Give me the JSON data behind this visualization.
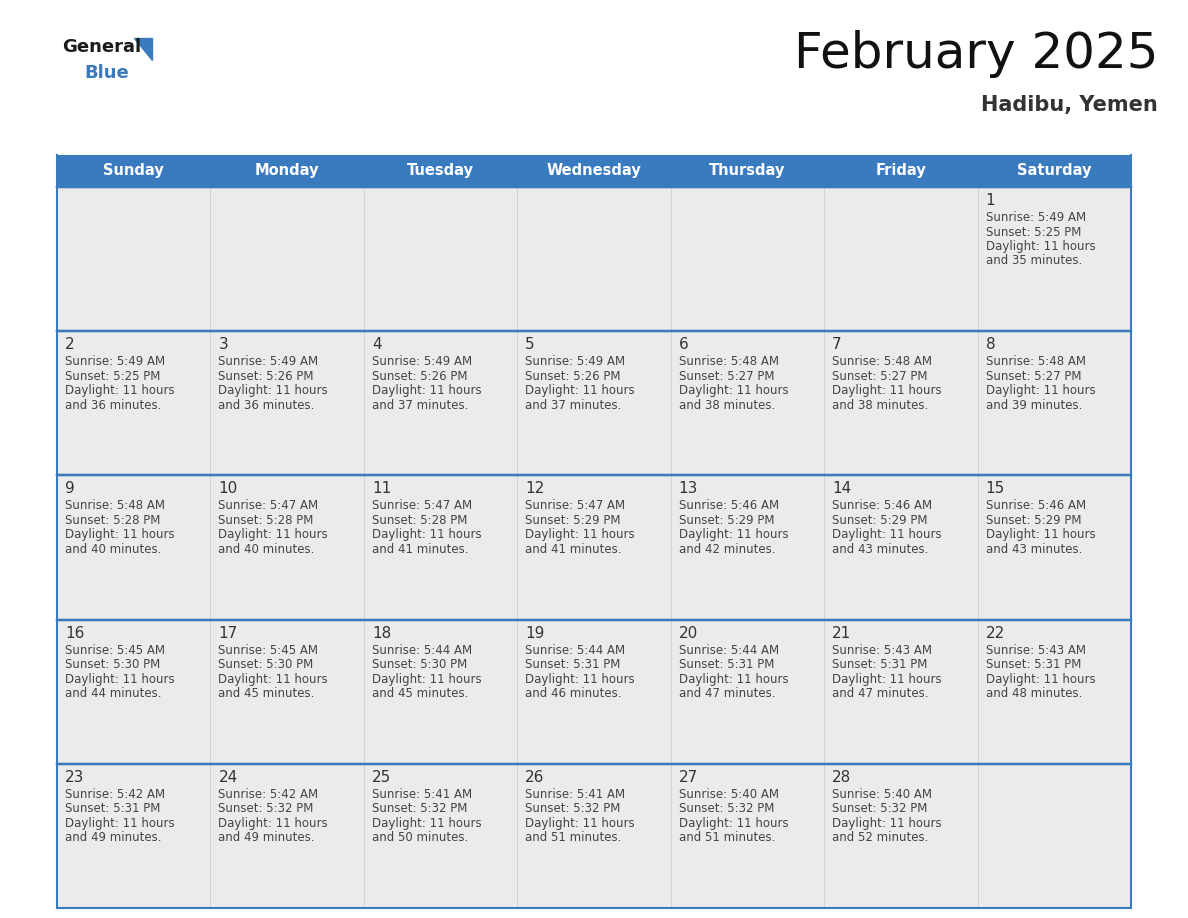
{
  "title": "February 2025",
  "subtitle": "Hadibu, Yemen",
  "header_color": "#3a7abf",
  "header_text_color": "#ffffff",
  "day_names": [
    "Sunday",
    "Monday",
    "Tuesday",
    "Wednesday",
    "Thursday",
    "Friday",
    "Saturday"
  ],
  "bg_color": "#ffffff",
  "cell_bg": "#ebebeb",
  "border_color": "#3a7abf",
  "day_num_color": "#333333",
  "text_color": "#444444",
  "calendar": [
    [
      null,
      null,
      null,
      null,
      null,
      null,
      1
    ],
    [
      2,
      3,
      4,
      5,
      6,
      7,
      8
    ],
    [
      9,
      10,
      11,
      12,
      13,
      14,
      15
    ],
    [
      16,
      17,
      18,
      19,
      20,
      21,
      22
    ],
    [
      23,
      24,
      25,
      26,
      27,
      28,
      null
    ]
  ],
  "sunrise": {
    "1": "5:49 AM",
    "2": "5:49 AM",
    "3": "5:49 AM",
    "4": "5:49 AM",
    "5": "5:49 AM",
    "6": "5:48 AM",
    "7": "5:48 AM",
    "8": "5:48 AM",
    "9": "5:48 AM",
    "10": "5:47 AM",
    "11": "5:47 AM",
    "12": "5:47 AM",
    "13": "5:46 AM",
    "14": "5:46 AM",
    "15": "5:46 AM",
    "16": "5:45 AM",
    "17": "5:45 AM",
    "18": "5:44 AM",
    "19": "5:44 AM",
    "20": "5:44 AM",
    "21": "5:43 AM",
    "22": "5:43 AM",
    "23": "5:42 AM",
    "24": "5:42 AM",
    "25": "5:41 AM",
    "26": "5:41 AM",
    "27": "5:40 AM",
    "28": "5:40 AM"
  },
  "sunset": {
    "1": "5:25 PM",
    "2": "5:25 PM",
    "3": "5:26 PM",
    "4": "5:26 PM",
    "5": "5:26 PM",
    "6": "5:27 PM",
    "7": "5:27 PM",
    "8": "5:27 PM",
    "9": "5:28 PM",
    "10": "5:28 PM",
    "11": "5:28 PM",
    "12": "5:29 PM",
    "13": "5:29 PM",
    "14": "5:29 PM",
    "15": "5:29 PM",
    "16": "5:30 PM",
    "17": "5:30 PM",
    "18": "5:30 PM",
    "19": "5:31 PM",
    "20": "5:31 PM",
    "21": "5:31 PM",
    "22": "5:31 PM",
    "23": "5:31 PM",
    "24": "5:32 PM",
    "25": "5:32 PM",
    "26": "5:32 PM",
    "27": "5:32 PM",
    "28": "5:32 PM"
  },
  "daylight": {
    "1": "11 hours\nand 35 minutes.",
    "2": "11 hours\nand 36 minutes.",
    "3": "11 hours\nand 36 minutes.",
    "4": "11 hours\nand 37 minutes.",
    "5": "11 hours\nand 37 minutes.",
    "6": "11 hours\nand 38 minutes.",
    "7": "11 hours\nand 38 minutes.",
    "8": "11 hours\nand 39 minutes.",
    "9": "11 hours\nand 40 minutes.",
    "10": "11 hours\nand 40 minutes.",
    "11": "11 hours\nand 41 minutes.",
    "12": "11 hours\nand 41 minutes.",
    "13": "11 hours\nand 42 minutes.",
    "14": "11 hours\nand 43 minutes.",
    "15": "11 hours\nand 43 minutes.",
    "16": "11 hours\nand 44 minutes.",
    "17": "11 hours\nand 45 minutes.",
    "18": "11 hours\nand 45 minutes.",
    "19": "11 hours\nand 46 minutes.",
    "20": "11 hours\nand 47 minutes.",
    "21": "11 hours\nand 47 minutes.",
    "22": "11 hours\nand 48 minutes.",
    "23": "11 hours\nand 49 minutes.",
    "24": "11 hours\nand 49 minutes.",
    "25": "11 hours\nand 50 minutes.",
    "26": "11 hours\nand 51 minutes.",
    "27": "11 hours\nand 51 minutes.",
    "28": "11 hours\nand 52 minutes."
  }
}
